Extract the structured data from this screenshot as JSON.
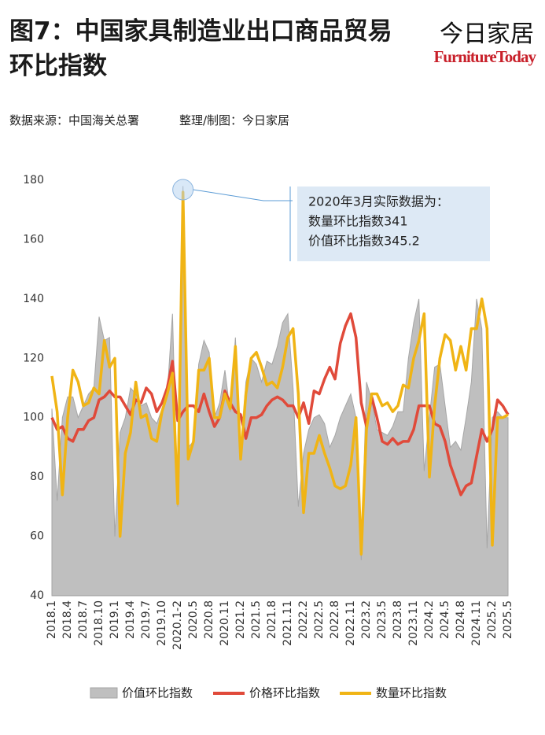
{
  "header": {
    "title": "图7：中国家具制造业出口商品贸易环比指数",
    "logo_cn": "今日家居",
    "logo_en": "FurnitureToday",
    "source": "数据来源：中国海关总署",
    "credit": "整理/制图：今日家居"
  },
  "chart_data": {
    "type": "area-line",
    "categories": [
      "2018.1",
      null,
      null,
      "2018.4",
      null,
      null,
      "2018.7",
      null,
      null,
      "2018.10",
      null,
      null,
      "2019.1",
      null,
      null,
      "2019.4",
      null,
      null,
      "2019.7",
      null,
      null,
      "2019.10",
      null,
      null,
      "2020.1-2",
      null,
      null,
      "2020.5",
      null,
      null,
      "2020.8",
      null,
      null,
      "2020.11",
      null,
      null,
      "2021.2",
      null,
      null,
      "2021.5",
      null,
      null,
      "2021.8",
      null,
      null,
      "2021.11",
      null,
      null,
      "2022.2",
      null,
      null,
      "2022.5",
      null,
      null,
      "2022.8",
      null,
      null,
      "2022.11",
      null,
      null,
      "2023.2",
      null,
      null,
      "2023.5",
      null,
      null,
      "2023.8",
      null,
      null,
      "2023.11",
      null,
      null,
      "2024.2",
      null,
      null,
      "2024.5",
      null,
      null,
      "2024.8",
      null,
      null,
      "2024.11",
      null,
      null,
      "2025.2",
      null,
      null,
      "2025.5"
    ],
    "series": [
      {
        "name": "价值环比指数",
        "color": "#bfbfbf",
        "kind": "area",
        "values": [
          103,
          72,
          100,
          107,
          107,
          100,
          104,
          108,
          110,
          134,
          126,
          127,
          60,
          95,
          100,
          110,
          108,
          104,
          105,
          100,
          98,
          103,
          108,
          135,
          70,
          178,
          90,
          92,
          118,
          126,
          122,
          100,
          105,
          116,
          102,
          127,
          88,
          112,
          120,
          118,
          112,
          119,
          118,
          124,
          132,
          135,
          110,
          70,
          88,
          96,
          100,
          101,
          98,
          90,
          94,
          100,
          104,
          108,
          100,
          52,
          112,
          106,
          96,
          95,
          94,
          97,
          102,
          102,
          120,
          132,
          140,
          82,
          100,
          117,
          118,
          104,
          90,
          92,
          89,
          100,
          112,
          140,
          130,
          56,
          100,
          102,
          100,
          100
        ]
      },
      {
        "name": "价格环比指数",
        "color": "#e04a3a",
        "kind": "line",
        "values": [
          100,
          96,
          97,
          93,
          92,
          96,
          96,
          99,
          100,
          106,
          107,
          109,
          107,
          107,
          104,
          101,
          106,
          105,
          110,
          108,
          102,
          105,
          110,
          119,
          99,
          102,
          104,
          104,
          102,
          108,
          102,
          97,
          100,
          109,
          105,
          102,
          101,
          93,
          100,
          100,
          101,
          104,
          106,
          107,
          106,
          104,
          104,
          100,
          105,
          98,
          109,
          108,
          113,
          117,
          113,
          125,
          131,
          135,
          127,
          105,
          97,
          107,
          100,
          92,
          91,
          93,
          91,
          92,
          92,
          96,
          104,
          104,
          104,
          98,
          97,
          92,
          84,
          79,
          74,
          77,
          78,
          87,
          96,
          92,
          96,
          106,
          104,
          101
        ]
      },
      {
        "name": "数量环比指数",
        "color": "#f0b415",
        "kind": "line",
        "values": [
          114,
          102,
          74,
          100,
          116,
          112,
          104,
          105,
          110,
          108,
          126,
          117,
          120,
          60,
          88,
          95,
          112,
          100,
          101,
          93,
          92,
          102,
          108,
          115,
          71,
          176,
          86,
          92,
          116,
          116,
          120,
          100,
          100,
          108,
          103,
          124,
          86,
          108,
          120,
          122,
          117,
          111,
          112,
          110,
          117,
          127,
          130,
          108,
          68,
          88,
          88,
          94,
          88,
          83,
          77,
          76,
          77,
          84,
          100,
          54,
          96,
          108,
          108,
          104,
          105,
          102,
          104,
          111,
          110,
          120,
          126,
          135,
          80,
          104,
          120,
          128,
          126,
          116,
          124,
          116,
          130,
          130,
          140,
          130,
          57,
          100,
          100,
          101
        ]
      }
    ],
    "ylim": [
      40,
      180
    ],
    "yticks": [
      40,
      60,
      80,
      100,
      120,
      140,
      160,
      180
    ],
    "annotation": [
      "2020年3月实际数据为：",
      "数量环比指数341",
      "价值环比指数345.2"
    ]
  }
}
